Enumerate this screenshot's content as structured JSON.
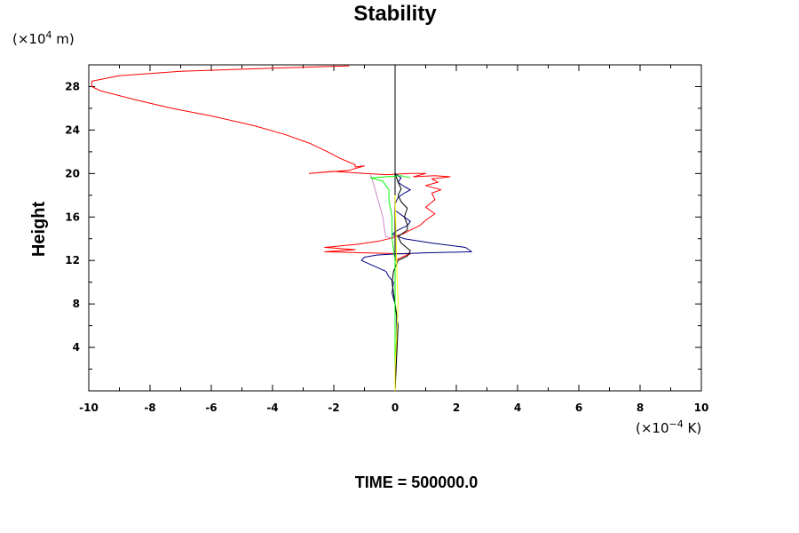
{
  "chart_data": {
    "type": "line",
    "title": "Stability",
    "xlabel": "",
    "ylabel": "Height",
    "x_units": {
      "prefix": "(×10",
      "exponent": "−4",
      "suffix": " K)"
    },
    "y_units": {
      "prefix": "(×10",
      "exponent": "4",
      "suffix": " m)"
    },
    "xlim": [
      -10,
      10
    ],
    "ylim": [
      0,
      30
    ],
    "x_ticks": [
      "-10",
      "-8",
      "-6",
      "-4",
      "-2",
      "0",
      "2",
      "4",
      "6",
      "8",
      "10"
    ],
    "y_ticks": [
      "4",
      "8",
      "12",
      "16",
      "20",
      "24",
      "28"
    ],
    "grid": false,
    "series": [
      {
        "color": "#ff0000",
        "points": [
          [
            -1.5,
            29.9
          ],
          [
            -4,
            29.7
          ],
          [
            -7,
            29.4
          ],
          [
            -9,
            29.0
          ],
          [
            -9.9,
            28.5
          ],
          [
            -9.9,
            28.0
          ],
          [
            -9.6,
            27.6
          ],
          [
            -8.5,
            26.8
          ],
          [
            -7.3,
            26.0
          ],
          [
            -6,
            25.3
          ],
          [
            -4.6,
            24.4
          ],
          [
            -3.6,
            23.6
          ],
          [
            -2.8,
            22.8
          ],
          [
            -2.2,
            22.0
          ],
          [
            -1.8,
            21.4
          ],
          [
            -1.3,
            20.8
          ],
          [
            -1.3,
            20.6
          ],
          [
            -1.0,
            20.7
          ],
          [
            -1.5,
            20.3
          ],
          [
            -2.8,
            20.0
          ],
          [
            -2.0,
            20.2
          ],
          [
            -1.0,
            20.0
          ],
          [
            -0.3,
            19.9
          ],
          [
            0.5,
            20.0
          ],
          [
            1.0,
            20.0
          ],
          [
            0.6,
            19.7
          ],
          [
            1.3,
            19.8
          ],
          [
            1.8,
            19.7
          ],
          [
            1.2,
            19.5
          ],
          [
            1.4,
            19.2
          ],
          [
            1.0,
            18.9
          ],
          [
            1.5,
            18.5
          ],
          [
            1.2,
            18.2
          ],
          [
            1.3,
            17.6
          ],
          [
            1.0,
            16.9
          ],
          [
            1.3,
            16.3
          ],
          [
            1.0,
            15.7
          ],
          [
            0.8,
            15.2
          ],
          [
            0.5,
            14.8
          ],
          [
            0.3,
            14.5
          ],
          [
            0.1,
            14.3
          ],
          [
            -0.2,
            14.0
          ],
          [
            -0.5,
            13.8
          ],
          [
            -1.2,
            13.5
          ],
          [
            -2.3,
            13.2
          ],
          [
            -1.3,
            13.0
          ],
          [
            -2.3,
            12.8
          ],
          [
            -1.0,
            12.7
          ],
          [
            0.5,
            12.6
          ],
          [
            0.3,
            12.4
          ],
          [
            0.0,
            12.0
          ],
          [
            0.0,
            8.0
          ],
          [
            0.0,
            0.0
          ]
        ]
      },
      {
        "color": "#000080",
        "points": [
          [
            0.0,
            0.0
          ],
          [
            0.05,
            4.0
          ],
          [
            0.05,
            7.0
          ],
          [
            0.0,
            8.0
          ],
          [
            -0.1,
            9.0
          ],
          [
            -0.05,
            10.0
          ],
          [
            -0.2,
            10.5
          ],
          [
            -0.3,
            11.0
          ],
          [
            -0.7,
            11.5
          ],
          [
            -1.1,
            12.0
          ],
          [
            -1.0,
            12.3
          ],
          [
            -0.6,
            12.5
          ],
          [
            0.0,
            12.6
          ],
          [
            1.0,
            12.7
          ],
          [
            2.5,
            12.8
          ],
          [
            2.3,
            13.2
          ],
          [
            1.2,
            13.6
          ],
          [
            0.3,
            14.0
          ],
          [
            -0.1,
            14.4
          ],
          [
            0.1,
            14.8
          ],
          [
            0.4,
            15.2
          ],
          [
            0.5,
            15.6
          ],
          [
            0.3,
            16.0
          ],
          [
            0.0,
            16.6
          ],
          [
            0.0,
            17.2
          ],
          [
            0.1,
            17.8
          ],
          [
            0.3,
            18.2
          ],
          [
            0.5,
            18.5
          ],
          [
            0.3,
            18.8
          ],
          [
            0.1,
            19.2
          ],
          [
            0.2,
            19.6
          ],
          [
            0.0,
            20.0
          ]
        ]
      },
      {
        "color": "#000000",
        "points": [
          [
            0.0,
            0.0
          ],
          [
            0.05,
            3.0
          ],
          [
            0.1,
            6.0
          ],
          [
            0.0,
            8.0
          ],
          [
            -0.1,
            10.0
          ],
          [
            -0.05,
            11.0
          ],
          [
            0.1,
            12.0
          ],
          [
            0.4,
            12.4
          ],
          [
            0.5,
            12.9
          ],
          [
            0.2,
            13.6
          ],
          [
            0.1,
            14.2
          ],
          [
            0.4,
            14.8
          ],
          [
            0.4,
            15.3
          ],
          [
            0.3,
            16.0
          ],
          [
            0.4,
            16.8
          ],
          [
            0.2,
            17.4
          ],
          [
            0.1,
            18.0
          ],
          [
            0.2,
            18.6
          ],
          [
            0.1,
            19.2
          ],
          [
            0.0,
            20.0
          ]
        ]
      },
      {
        "color": "#cc88cc",
        "points": [
          [
            -0.8,
            19.9
          ],
          [
            -0.7,
            19.0
          ],
          [
            -0.6,
            18.0
          ],
          [
            -0.5,
            17.0
          ],
          [
            -0.4,
            16.0
          ],
          [
            -0.35,
            15.0
          ],
          [
            -0.3,
            14.2
          ],
          [
            0.0,
            14.0
          ]
        ]
      },
      {
        "color": "#00ff00",
        "points": [
          [
            0.0,
            0.0
          ],
          [
            0.0,
            12.0
          ],
          [
            -0.1,
            14.0
          ],
          [
            -0.1,
            16.0
          ],
          [
            -0.2,
            17.5
          ],
          [
            -0.2,
            18.5
          ],
          [
            -0.4,
            19.3
          ],
          [
            -0.8,
            19.6
          ],
          [
            0.2,
            19.8
          ],
          [
            0.5,
            19.6
          ]
        ]
      },
      {
        "color": "#ffff00",
        "points": [
          [
            0.0,
            0.0
          ],
          [
            0.0,
            2.0
          ],
          [
            0.1,
            8.0
          ],
          [
            0.05,
            12.0
          ],
          [
            0.0,
            18.0
          ]
        ]
      }
    ],
    "vertical_line": {
      "x": 0,
      "color": "#000000"
    }
  },
  "footer": {
    "label": "TIME = 500000.0"
  }
}
